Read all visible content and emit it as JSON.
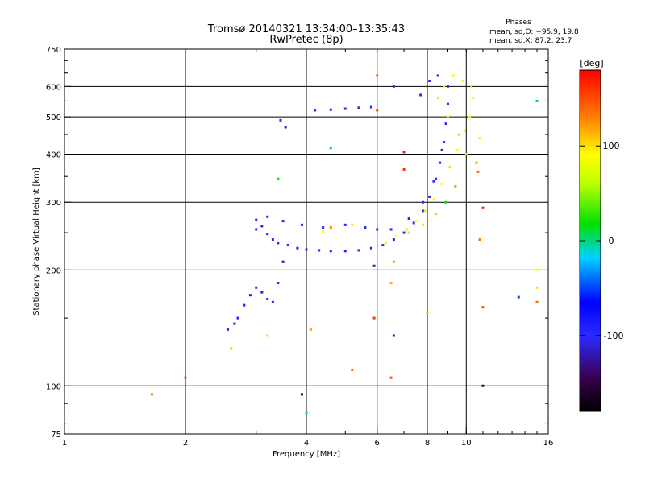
{
  "chart_data": {
    "type": "scatter",
    "title": "Tromsø 20140321 13:34:00–13:35:43",
    "subtitle": "RwPretec (8p)",
    "annotation": {
      "heading": "Phases",
      "line1": "mean, sd,O: −95.9, 19.8",
      "line2": "mean, sd,X:  87.2, 23.7"
    },
    "xlabel": "Frequency [MHz]",
    "ylabel": "Stationary phase Virtual Height [km]",
    "xscale": "log",
    "yscale": "log",
    "xlim": [
      1,
      16
    ],
    "ylim": [
      75,
      750
    ],
    "xticks": [
      1,
      2,
      4,
      6,
      8,
      10,
      16
    ],
    "xgrid": [
      2,
      4,
      6,
      8,
      10
    ],
    "yticks": [
      75,
      100,
      200,
      300,
      400,
      500,
      600,
      750
    ],
    "ygrid": [
      100,
      200,
      300,
      400,
      500,
      600
    ],
    "grid": true,
    "colorbar": {
      "label": "[deg]",
      "min": -180,
      "max": 180,
      "ticks": [
        100,
        0,
        -100
      ],
      "colormap": "rainbow"
    },
    "series": [
      {
        "mode": "O",
        "points": [
          [
            2.55,
            140,
            -100
          ],
          [
            2.65,
            145,
            -110
          ],
          [
            2.7,
            150,
            -95
          ],
          [
            2.8,
            162,
            -105
          ],
          [
            2.9,
            172,
            -90
          ],
          [
            3.0,
            180,
            -100
          ],
          [
            3.1,
            175,
            -110
          ],
          [
            3.2,
            168,
            -95
          ],
          [
            3.3,
            165,
            -105
          ],
          [
            3.4,
            185,
            -98
          ],
          [
            3.0,
            255,
            -110
          ],
          [
            3.1,
            260,
            -100
          ],
          [
            3.2,
            248,
            -95
          ],
          [
            3.3,
            240,
            -105
          ],
          [
            3.4,
            235,
            -102
          ],
          [
            3.6,
            232,
            -98
          ],
          [
            3.8,
            228,
            -110
          ],
          [
            4.0,
            226,
            -100
          ],
          [
            4.3,
            225,
            -95
          ],
          [
            4.6,
            224,
            -105
          ],
          [
            5.0,
            224,
            -100
          ],
          [
            5.4,
            225,
            -98
          ],
          [
            5.8,
            228,
            -110
          ],
          [
            6.2,
            232,
            -100
          ],
          [
            6.6,
            240,
            -95
          ],
          [
            7.0,
            250,
            -105
          ],
          [
            7.4,
            265,
            -100
          ],
          [
            7.8,
            285,
            -98
          ],
          [
            8.1,
            310,
            -110
          ],
          [
            8.4,
            345,
            -100
          ],
          [
            8.6,
            380,
            -95
          ],
          [
            8.8,
            430,
            -105
          ],
          [
            8.9,
            480,
            -100
          ],
          [
            9.0,
            540,
            -98
          ],
          [
            9.0,
            600,
            -100
          ],
          [
            3.0,
            270,
            -100
          ],
          [
            3.2,
            275,
            -105
          ],
          [
            3.5,
            268,
            -95
          ],
          [
            3.9,
            262,
            -110
          ],
          [
            4.4,
            258,
            -100
          ],
          [
            5.0,
            262,
            -98
          ],
          [
            5.6,
            258,
            -105
          ],
          [
            6.0,
            255,
            -100
          ],
          [
            6.5,
            255,
            -95
          ],
          [
            7.2,
            272,
            -105
          ],
          [
            7.8,
            300,
            -100
          ],
          [
            8.3,
            340,
            -98
          ],
          [
            8.7,
            410,
            -110
          ],
          [
            4.2,
            520,
            -100
          ],
          [
            4.6,
            522,
            -95
          ],
          [
            5.0,
            525,
            -105
          ],
          [
            5.4,
            528,
            -100
          ],
          [
            5.8,
            530,
            -98
          ],
          [
            3.45,
            490,
            -100
          ],
          [
            3.55,
            470,
            -110
          ],
          [
            7.7,
            570,
            -95
          ],
          [
            8.1,
            620,
            -100
          ],
          [
            8.5,
            640,
            -105
          ]
        ]
      },
      {
        "mode": "X",
        "points": [
          [
            6.3,
            235,
            80
          ],
          [
            6.7,
            245,
            90
          ],
          [
            7.1,
            255,
            100
          ],
          [
            7.5,
            268,
            85
          ],
          [
            7.9,
            285,
            95
          ],
          [
            8.3,
            305,
            80
          ],
          [
            8.7,
            335,
            90
          ],
          [
            9.1,
            370,
            100
          ],
          [
            9.5,
            410,
            88
          ],
          [
            9.9,
            460,
            95
          ],
          [
            10.2,
            500,
            82
          ],
          [
            10.4,
            560,
            90
          ],
          [
            10.3,
            600,
            100
          ],
          [
            9.8,
            620,
            85
          ],
          [
            9.3,
            640,
            92
          ],
          [
            8.8,
            600,
            80
          ],
          [
            8.5,
            560,
            95
          ],
          [
            9.0,
            500,
            70
          ],
          [
            9.6,
            450,
            110
          ],
          [
            10.0,
            400,
            60
          ],
          [
            10.6,
            380,
            120
          ],
          [
            10.8,
            440,
            95
          ],
          [
            10.7,
            360,
            140
          ],
          [
            9.4,
            330,
            40
          ],
          [
            8.9,
            300,
            20
          ],
          [
            8.4,
            280,
            110
          ],
          [
            7.8,
            262,
            70
          ],
          [
            7.2,
            250,
            100
          ],
          [
            6.0,
            520,
            150
          ],
          [
            6.0,
            640,
            140
          ],
          [
            5.2,
            262,
            100
          ],
          [
            4.6,
            258,
            130
          ],
          [
            4.4,
            252,
            90
          ]
        ]
      },
      {
        "mode": "scatter",
        "points": [
          [
            1.65,
            95,
            130
          ],
          [
            2.0,
            105,
            150
          ],
          [
            2.6,
            125,
            110
          ],
          [
            3.2,
            135,
            100
          ],
          [
            3.4,
            345,
            20
          ],
          [
            3.5,
            210,
            -60
          ],
          [
            3.9,
            95,
            -150
          ],
          [
            4.0,
            85,
            -10
          ],
          [
            4.1,
            140,
            120
          ],
          [
            4.6,
            415,
            10
          ],
          [
            5.2,
            110,
            140
          ],
          [
            5.9,
            150,
            160
          ],
          [
            5.9,
            205,
            -120
          ],
          [
            6.5,
            185,
            120
          ],
          [
            6.6,
            135,
            -90
          ],
          [
            6.5,
            105,
            150
          ],
          [
            6.6,
            210,
            120
          ],
          [
            6.6,
            600,
            -100
          ],
          [
            7.0,
            405,
            170
          ],
          [
            7.0,
            365,
            160
          ],
          [
            8.0,
            155,
            110
          ],
          [
            10.8,
            240,
            130
          ],
          [
            11.0,
            290,
            170
          ],
          [
            11.0,
            100,
            -140
          ],
          [
            13.5,
            170,
            -50
          ],
          [
            15.0,
            180,
            100
          ],
          [
            15.0,
            165,
            140
          ],
          [
            15.0,
            200,
            90
          ],
          [
            15.0,
            550,
            10
          ],
          [
            11.0,
            160,
            150
          ]
        ]
      }
    ]
  }
}
